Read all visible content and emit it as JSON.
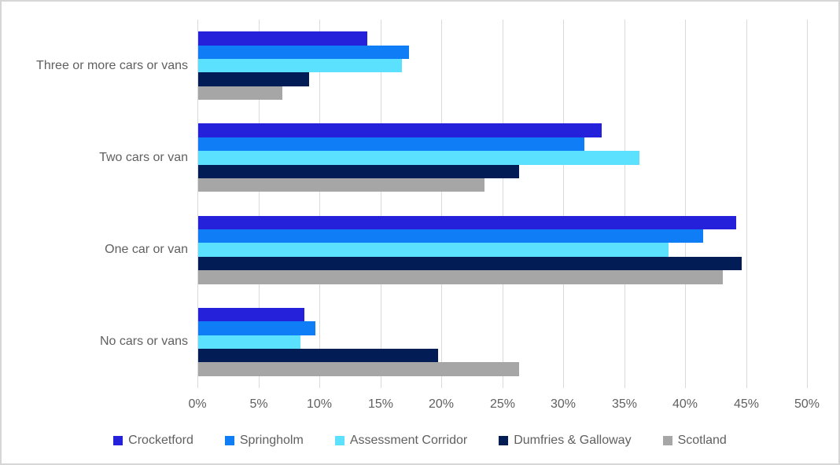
{
  "chart_data": {
    "type": "bar",
    "orientation": "horizontal",
    "categories": [
      "Three or more cars or vans",
      "Two cars or van",
      "One car or van",
      "No cars or vans"
    ],
    "series": [
      {
        "name": "Crocketford",
        "color": "#2520d9",
        "values": [
          13.9,
          33.1,
          44.1,
          8.7
        ]
      },
      {
        "name": "Springholm",
        "color": "#0e7df6",
        "values": [
          17.3,
          31.7,
          41.4,
          9.6
        ]
      },
      {
        "name": "Assessment Corridor",
        "color": "#5be1fd",
        "values": [
          16.7,
          36.2,
          38.6,
          8.4
        ]
      },
      {
        "name": "Dumfries & Galloway",
        "color": "#021d55",
        "values": [
          9.1,
          26.3,
          44.6,
          19.7
        ]
      },
      {
        "name": "Scotland",
        "color": "#a6a6a6",
        "values": [
          6.9,
          23.5,
          43.0,
          26.3
        ]
      }
    ],
    "x_axis": {
      "min": 0,
      "max": 50,
      "step": 5,
      "tick_labels": [
        "0%",
        "5%",
        "10%",
        "15%",
        "20%",
        "25%",
        "30%",
        "35%",
        "40%",
        "45%",
        "50%"
      ],
      "grid": true
    },
    "legend": {
      "position": "bottom"
    },
    "colors": {
      "gridline": "#d9d9d9",
      "text": "#606060",
      "frame_border": "#d6d6d6",
      "background": "#ffffff"
    }
  }
}
